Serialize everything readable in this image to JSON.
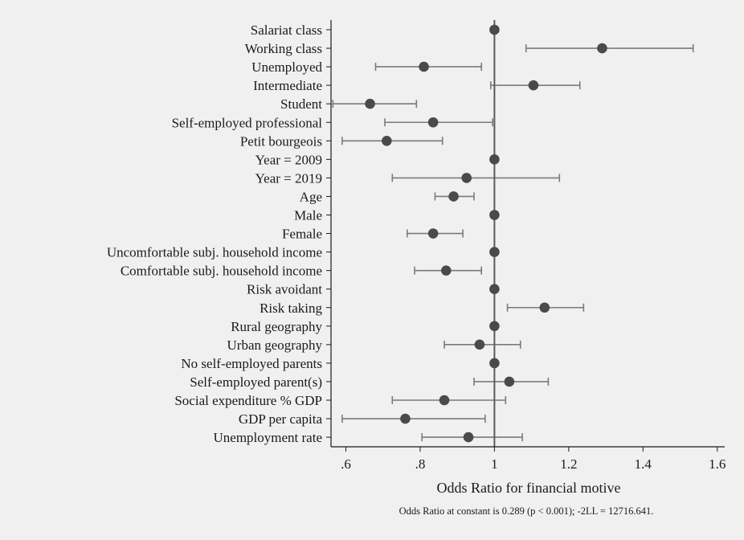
{
  "chart_data": {
    "type": "scatter",
    "subtype": "coefficient-plot-with-confidence-intervals",
    "xlabel": "Odds Ratio for financial motive",
    "xlim": [
      0.56,
      1.62
    ],
    "xticks": [
      0.6,
      0.8,
      1,
      1.2,
      1.4,
      1.6
    ],
    "xtick_labels": [
      ".6",
      ".8",
      "1",
      "1.2",
      "1.4",
      "1.6"
    ],
    "reference_line": 1,
    "grid": false,
    "footnote": "Odds Ratio at constant is 0.289 (p < 0.001); -2LL = 12716.641.",
    "categories": [
      "Salariat class",
      "Working class",
      "Unemployed",
      "Intermediate",
      "Student",
      "Self-employed professional",
      "Petit bourgeois",
      "Year = 2009",
      "Year = 2019",
      "Age",
      "Male",
      "Female",
      "Uncomfortable subj. household income",
      "Comfortable subj. household income",
      "Risk avoidant",
      "Risk taking",
      "Rural geography",
      "Urban geography",
      "No self-employed parents",
      "Self-employed parent(s)",
      "Social expenditure % GDP",
      "GDP per capita",
      "Unemployment rate"
    ],
    "estimates": [
      1.0,
      1.29,
      0.81,
      1.105,
      0.665,
      0.835,
      0.71,
      1.0,
      0.925,
      0.89,
      1.0,
      0.835,
      1.0,
      0.87,
      1.0,
      1.135,
      1.0,
      0.96,
      1.0,
      1.04,
      0.865,
      0.76,
      0.93
    ],
    "ci_lower": [
      null,
      1.085,
      0.68,
      0.99,
      0.565,
      0.705,
      0.59,
      null,
      0.725,
      0.84,
      null,
      0.765,
      null,
      0.785,
      null,
      1.035,
      null,
      0.865,
      null,
      0.945,
      0.725,
      0.59,
      0.805
    ],
    "ci_upper": [
      null,
      1.535,
      0.965,
      1.23,
      0.79,
      0.995,
      0.86,
      null,
      1.175,
      0.945,
      null,
      0.915,
      null,
      0.965,
      null,
      1.24,
      null,
      1.07,
      null,
      1.145,
      1.03,
      0.975,
      1.075
    ],
    "colors": {
      "marker": "#4a4a4a",
      "ci": "#7a7a7a",
      "reference": "#5a5a5a",
      "axis": "#1a1a1a"
    }
  }
}
